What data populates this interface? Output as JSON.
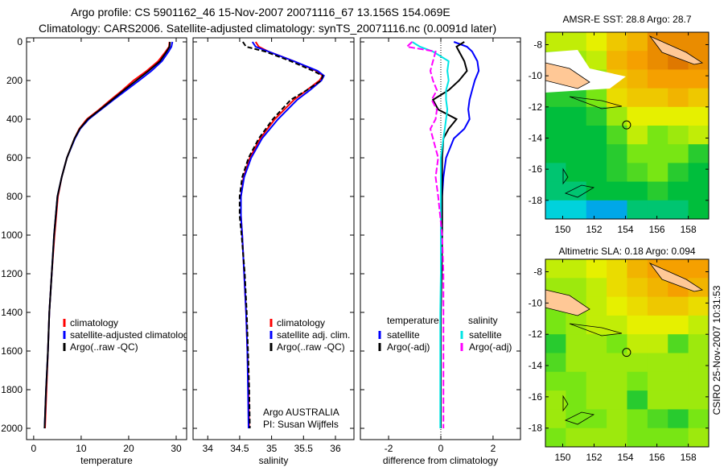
{
  "title_line1": "Argo profile: CS 5901162_46 15-Nov-2007 20071116_67 13.156S 154.069E",
  "title_line2": "Climatology: CARS2006. Satellite-adjusted climatology: synTS_20071116.nc (0.0091d later)",
  "side_stamp": "CSIRO 25-Nov-2007 10:31:53",
  "colors": {
    "climatology": "#ff0000",
    "satellite": "#0000ff",
    "argo": "#000000",
    "cyan": "#00e5e5",
    "magenta": "#ff00ff"
  },
  "chart_data": [
    {
      "type": "line",
      "xlabel": "temperature",
      "ylabel": "",
      "xlim": [
        -1.5,
        32.2
      ],
      "ylim": [
        2000,
        0
      ],
      "xticks": [
        "0",
        "10",
        "20",
        "30"
      ],
      "xtick_values": [
        0,
        10,
        20,
        30
      ],
      "yticks": [
        "0",
        "200",
        "400",
        "600",
        "800",
        "1000",
        "1200",
        "1400",
        "1600",
        "1800",
        "2000"
      ],
      "ytick_values": [
        0,
        200,
        400,
        600,
        800,
        1000,
        1200,
        1400,
        1600,
        1800,
        2000
      ],
      "depth": [
        0,
        25,
        50,
        100,
        150,
        200,
        250,
        300,
        350,
        400,
        450,
        500,
        600,
        700,
        800,
        1000,
        1200,
        1400,
        1600,
        1800,
        2000
      ],
      "series": [
        {
          "name": "climatology",
          "color": "#ff0000",
          "values": [
            28.6,
            28.5,
            27.8,
            26.2,
            23.8,
            21.0,
            18.7,
            16.2,
            13.8,
            11.2,
            9.6,
            8.6,
            7.0,
            5.9,
            5.1,
            4.4,
            3.8,
            3.3,
            3.0,
            2.7,
            2.4
          ]
        },
        {
          "name": "satellite-adjusted climatology",
          "color": "#0000ff",
          "values": [
            29.2,
            29.0,
            28.4,
            27.0,
            24.8,
            22.2,
            19.5,
            16.8,
            14.2,
            11.6,
            9.8,
            8.7,
            7.0,
            5.9,
            5.0,
            4.3,
            3.8,
            3.3,
            3.0,
            2.6,
            2.3
          ]
        },
        {
          "name": "Argo(..raw -QC)",
          "color": "#000000",
          "values": [
            28.7,
            28.6,
            28.0,
            26.6,
            24.2,
            21.6,
            19.0,
            16.5,
            14.0,
            11.4,
            9.7,
            8.6,
            7.0,
            5.9,
            5.0,
            4.3,
            3.8,
            3.3,
            3.0,
            2.6,
            2.3
          ]
        }
      ],
      "legend": [
        "climatology",
        "satellite-adjusted climatology",
        "Argo(..raw -QC)"
      ]
    },
    {
      "type": "line",
      "xlabel": "salinity",
      "xlim": [
        33.77,
        36.29
      ],
      "ylim": [
        2000,
        0
      ],
      "xticks": [
        "34",
        "34.5",
        "35",
        "35.5",
        "36"
      ],
      "xtick_values": [
        34,
        34.5,
        35,
        35.5,
        36
      ],
      "depth": [
        0,
        25,
        50,
        100,
        150,
        175,
        200,
        250,
        300,
        400,
        500,
        600,
        700,
        800,
        900,
        1000,
        1200,
        1400,
        1600,
        1800,
        2000
      ],
      "series": [
        {
          "name": "climatology",
          "color": "#ff0000",
          "values": [
            34.75,
            34.8,
            34.95,
            35.35,
            35.7,
            35.8,
            35.75,
            35.55,
            35.35,
            35.05,
            34.82,
            34.66,
            34.56,
            34.52,
            34.52,
            34.54,
            34.57,
            34.6,
            34.62,
            34.64,
            34.65
          ]
        },
        {
          "name": "satellite adj. clim.",
          "color": "#0000ff",
          "values": [
            34.7,
            34.75,
            34.95,
            35.35,
            35.72,
            35.82,
            35.78,
            35.6,
            35.4,
            35.1,
            34.85,
            34.68,
            34.57,
            34.52,
            34.52,
            34.54,
            34.57,
            34.6,
            34.62,
            34.63,
            34.64
          ]
        },
        {
          "name": "Argo(..raw -QC)",
          "color": "#000000",
          "values": [
            34.55,
            34.6,
            34.9,
            35.3,
            35.65,
            35.8,
            35.78,
            35.55,
            35.3,
            35.02,
            34.8,
            34.64,
            34.54,
            34.5,
            34.5,
            34.53,
            34.58,
            34.61,
            34.63,
            34.65,
            34.66
          ]
        }
      ],
      "legend": [
        "climatology",
        "satellite adj. clim.",
        "Argo(..raw -QC)"
      ],
      "annotations": [
        "Argo AUSTRALIA",
        "PI: Susan Wijffels"
      ]
    },
    {
      "type": "line",
      "xlabel": "difference from climatology",
      "xlim": [
        -3.08,
        3.05
      ],
      "ylim": [
        2000,
        0
      ],
      "xticks": [
        "-2",
        "0",
        "2"
      ],
      "xtick_values": [
        -2,
        0,
        2
      ],
      "depth": [
        0,
        25,
        50,
        100,
        150,
        200,
        250,
        300,
        350,
        400,
        450,
        500,
        600,
        700,
        800,
        1000,
        1200,
        1400,
        1600,
        1800,
        2000
      ],
      "series": [
        {
          "name": "temperature satellite",
          "color": "#0000ff",
          "values": [
            0.5,
            1.0,
            1.2,
            1.4,
            1.45,
            1.3,
            1.2,
            1.1,
            1.05,
            1.1,
            0.9,
            0.5,
            0.2,
            0.1,
            0.05,
            0.05,
            0.02,
            0.0,
            0.0,
            0.0,
            0.0
          ]
        },
        {
          "name": "temperature Argo(-adj)",
          "color": "#000000",
          "values": [
            0.9,
            0.6,
            0.7,
            0.9,
            1.0,
            0.7,
            0.3,
            -0.3,
            -0.1,
            0.6,
            0.3,
            0.1,
            0.05,
            0.05,
            0.05,
            0.05,
            0.03,
            0.0,
            0.0,
            0.0,
            0.0
          ]
        },
        {
          "name": "salinity satellite",
          "color": "#00e5e5",
          "values": [
            -1.1,
            -0.8,
            -0.3,
            0.3,
            0.25,
            0.3,
            0.2,
            0.2,
            0.25,
            0.2,
            0.15,
            0.1,
            0.0,
            0.0,
            0.0,
            0.0,
            0.0,
            -0.02,
            -0.02,
            -0.02,
            -0.02
          ]
        },
        {
          "name": "salinity Argo(-adj)",
          "color": "#ff00ff",
          "values": [
            -1.1,
            -1.3,
            -0.2,
            -0.3,
            -0.4,
            -0.3,
            -0.15,
            -0.35,
            -0.15,
            -0.2,
            -0.4,
            -0.3,
            -0.1,
            -0.2,
            -0.1,
            0.05,
            0.1,
            0.1,
            0.1,
            0.1,
            0.1
          ]
        }
      ],
      "legend_headers": [
        "temperature",
        "salinity"
      ],
      "legend": [
        "satellite",
        "Argo(-adj)",
        "satellite",
        "Argo(-adj)"
      ]
    }
  ],
  "maps": [
    {
      "title": "AMSR-E SST: 28.8 Argo: 28.7",
      "lon_range": [
        148.9,
        159.3
      ],
      "lat_range": [
        -7.2,
        -19.2
      ],
      "xticks": [
        "150",
        "152",
        "154",
        "156",
        "158"
      ],
      "xtick_values": [
        150,
        152,
        154,
        156,
        158
      ],
      "yticks": [
        "-8",
        "-10",
        "-12",
        "-14",
        "-16",
        "-18"
      ],
      "ytick_values": [
        -8,
        -10,
        -12,
        -14,
        -16,
        -18
      ],
      "argo_position": [
        154.069,
        -13.156
      ],
      "grid": [
        [
          0.55,
          0.55,
          0.6,
          0.7,
          0.75,
          0.85,
          0.85,
          0.85
        ],
        [
          0.5,
          0.5,
          0.55,
          0.75,
          0.8,
          0.85,
          0.9,
          0.85
        ],
        [
          0.45,
          0.45,
          0.5,
          0.7,
          0.75,
          0.8,
          0.8,
          0.8
        ],
        [
          0.35,
          0.35,
          0.45,
          0.65,
          0.7,
          0.7,
          0.75,
          0.7
        ],
        [
          0.3,
          0.3,
          0.35,
          0.5,
          0.6,
          0.6,
          0.6,
          0.6
        ],
        [
          0.3,
          0.3,
          0.3,
          0.4,
          0.55,
          0.45,
          0.5,
          0.55
        ],
        [
          0.3,
          0.3,
          0.3,
          0.35,
          0.45,
          0.45,
          0.45,
          0.35
        ],
        [
          0.25,
          0.3,
          0.3,
          0.35,
          0.4,
          0.45,
          0.35,
          0.3
        ],
        [
          0.25,
          0.25,
          0.3,
          0.3,
          0.3,
          0.35,
          0.3,
          0.3
        ],
        [
          0.15,
          0.15,
          0.1,
          0.1,
          0.25,
          0.25,
          0.25,
          0.3
        ]
      ]
    },
    {
      "title": "Altimetric SLA: 0.18 Argo: 0.094",
      "lon_range": [
        148.9,
        159.3
      ],
      "lat_range": [
        -7.2,
        -19.2
      ],
      "xticks": [
        "150",
        "152",
        "154",
        "156",
        "158"
      ],
      "xtick_values": [
        150,
        152,
        154,
        156,
        158
      ],
      "yticks": [
        "-8",
        "-10",
        "-12",
        "-14",
        "-16",
        "-18"
      ],
      "ytick_values": [
        -8,
        -10,
        -12,
        -14,
        -16,
        -18
      ],
      "argo_position": [
        154.069,
        -13.156
      ],
      "grid": [
        [
          0.55,
          0.55,
          0.6,
          0.65,
          0.75,
          0.8,
          0.8,
          0.8
        ],
        [
          0.5,
          0.5,
          0.55,
          0.65,
          0.7,
          0.75,
          0.8,
          0.75
        ],
        [
          0.45,
          0.5,
          0.55,
          0.6,
          0.65,
          0.7,
          0.7,
          0.65
        ],
        [
          0.45,
          0.5,
          0.55,
          0.55,
          0.6,
          0.6,
          0.6,
          0.55
        ],
        [
          0.35,
          0.5,
          0.5,
          0.45,
          0.55,
          0.55,
          0.4,
          0.5
        ],
        [
          0.4,
          0.5,
          0.5,
          0.5,
          0.5,
          0.5,
          0.5,
          0.5
        ],
        [
          0.45,
          0.45,
          0.5,
          0.5,
          0.45,
          0.5,
          0.5,
          0.5
        ],
        [
          0.5,
          0.45,
          0.5,
          0.5,
          0.35,
          0.5,
          0.5,
          0.5
        ],
        [
          0.5,
          0.45,
          0.45,
          0.5,
          0.45,
          0.4,
          0.35,
          0.45
        ],
        [
          0.45,
          0.5,
          0.5,
          0.5,
          0.45,
          0.45,
          0.45,
          0.5
        ]
      ]
    }
  ]
}
